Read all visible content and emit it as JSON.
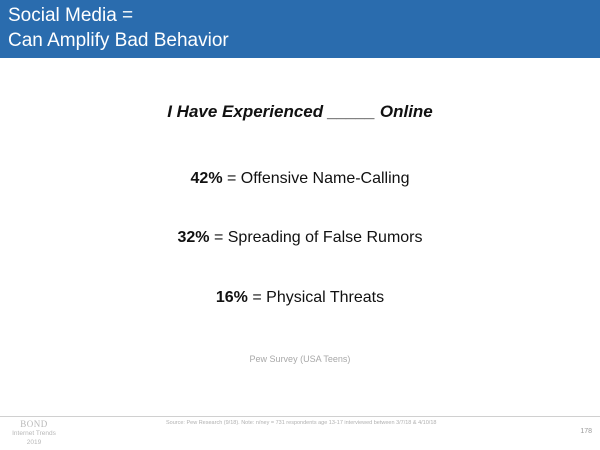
{
  "header": {
    "title_line1": "Social Media =",
    "title_line2": "Can Amplify Bad Behavior"
  },
  "headline": "I Have Experienced _____ Online",
  "stats": [
    {
      "pct": "42%",
      "text": " = Offensive Name-Calling"
    },
    {
      "pct": "32%",
      "text": " = Spreading of False Rumors"
    },
    {
      "pct": "16%",
      "text": " = Physical Threats"
    }
  ],
  "survey_note": "Pew Survey (USA Teens)",
  "footer": {
    "brand": "BOND",
    "brand_sub1": "Internet Trends",
    "brand_sub2": "2019",
    "source": "Source: Pew Research (9/18). Note: n/ney = 731 respondents age 13-17 interviewed between 3/7/18 & 4/10/18",
    "page_number": "178"
  },
  "colors": {
    "header_bg": "#2a6cae",
    "text": "#111111",
    "muted": "#a8a8a8"
  }
}
